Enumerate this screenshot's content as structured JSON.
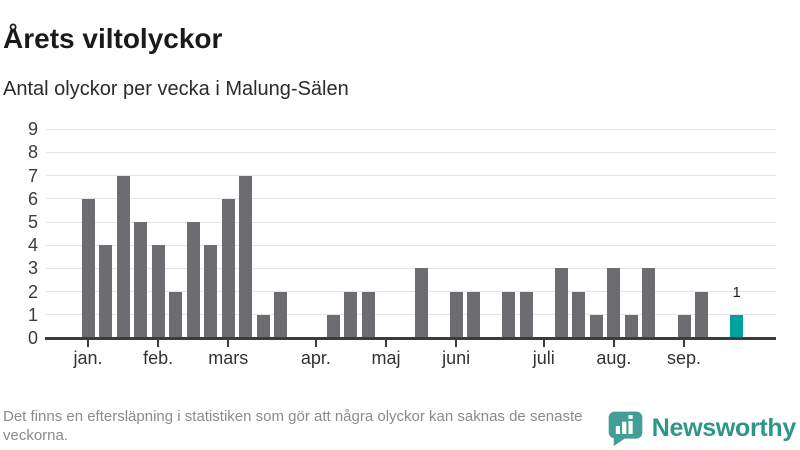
{
  "header": {
    "title": "Årets viltolyckor",
    "subtitle": "Antal olyckor per vecka i Malung-Sälen"
  },
  "chart_data": {
    "type": "bar",
    "title": "Årets viltolyckor",
    "subtitle": "Antal olyckor per vecka i Malung-Sälen",
    "x_unit": "vecka",
    "categories_note": "weeks 1-38 of the year, zero weeks shown as gaps",
    "values": [
      6,
      4,
      7,
      5,
      4,
      2,
      5,
      4,
      6,
      7,
      1,
      2,
      0,
      0,
      1,
      2,
      2,
      0,
      0,
      3,
      0,
      2,
      2,
      0,
      2,
      2,
      0,
      3,
      2,
      1,
      3,
      1,
      3,
      0,
      1,
      2,
      0,
      1
    ],
    "month_ticks": [
      {
        "label": "jan.",
        "week_index": 0
      },
      {
        "label": "feb.",
        "week_index": 4
      },
      {
        "label": "mars",
        "week_index": 8
      },
      {
        "label": "apr.",
        "week_index": 13
      },
      {
        "label": "maj",
        "week_index": 17
      },
      {
        "label": "juni",
        "week_index": 21
      },
      {
        "label": "juli",
        "week_index": 26
      },
      {
        "label": "aug.",
        "week_index": 30
      },
      {
        "label": "sep.",
        "week_index": 34
      }
    ],
    "y_ticks": [
      0,
      1,
      2,
      3,
      4,
      5,
      6,
      7,
      8,
      9
    ],
    "ylim": [
      0,
      9
    ],
    "grid": true,
    "legend": "none",
    "bar_color": "#6d6d71",
    "highlight_color": "#00a39b",
    "highlight_last_bar": true,
    "last_bar_value_label": "1"
  },
  "footer": {
    "note": "Det finns en eftersläpning i statistiken som gör att några olyckor kan saknas de senaste veckorna.",
    "brand": "Newsworthy",
    "brand_color": "#2e9589",
    "brand_icon_color": "#429e96"
  }
}
